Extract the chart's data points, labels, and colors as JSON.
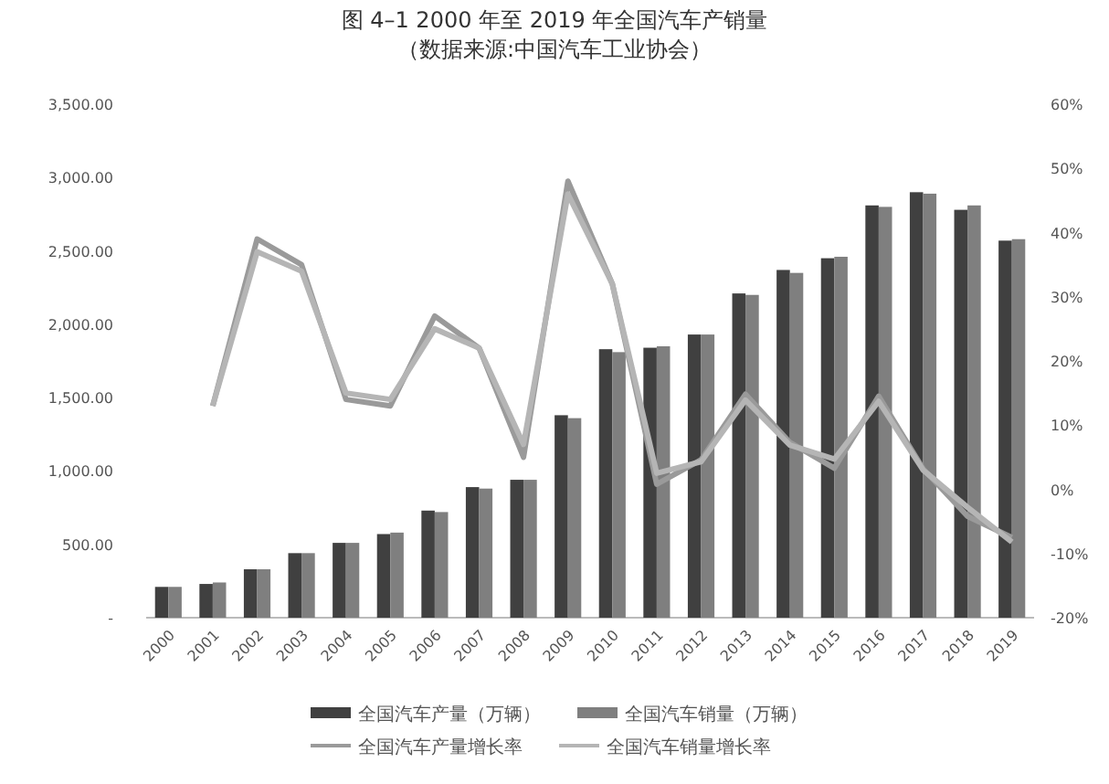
{
  "chart_data": {
    "type": "bar",
    "title": "图 4–1 2000 年至 2019 年全国汽车产销量",
    "subtitle": "（数据来源:中国汽车工业协会）",
    "categories": [
      "2000",
      "2001",
      "2002",
      "2003",
      "2004",
      "2005",
      "2006",
      "2007",
      "2008",
      "2009",
      "2010",
      "2011",
      "2012",
      "2013",
      "2014",
      "2015",
      "2016",
      "2017",
      "2018",
      "2019"
    ],
    "series": [
      {
        "name": "全国汽车产量（万辆）",
        "color": "#404040",
        "values": [
          210,
          230,
          330,
          440,
          510,
          570,
          730,
          890,
          940,
          1380,
          1830,
          1840,
          1930,
          2210,
          2370,
          2450,
          2810,
          2900,
          2780,
          2570
        ]
      },
      {
        "name": "全国汽车销量（万辆）",
        "color": "#7f7f7f",
        "values": [
          210,
          240,
          330,
          440,
          510,
          580,
          720,
          880,
          940,
          1360,
          1810,
          1850,
          1930,
          2200,
          2350,
          2460,
          2800,
          2890,
          2810,
          2580
        ]
      },
      {
        "name": "全国汽车产量增长率",
        "type": "line",
        "axis": "y2",
        "color": "#9a9a9a",
        "values": [
          null,
          13,
          39,
          35,
          14,
          13,
          27,
          22,
          5,
          48,
          32,
          0.8,
          4.6,
          14.8,
          7.3,
          3.3,
          14.5,
          3.2,
          -4.2,
          -7.5
        ]
      },
      {
        "name": "全国汽车销量增长率",
        "type": "line",
        "axis": "y2",
        "color": "#b5b5b5",
        "values": [
          null,
          13,
          37,
          34,
          15,
          14,
          25,
          22,
          7,
          46,
          32,
          2.5,
          4.3,
          13.9,
          6.9,
          4.7,
          13.7,
          3.0,
          -2.8,
          -8.2
        ]
      }
    ],
    "ylim": [
      0,
      3500
    ],
    "yticks": [
      {
        "value": 0,
        "label": "-"
      },
      {
        "value": 500,
        "label": "500.00"
      },
      {
        "value": 1000,
        "label": "1,000.00"
      },
      {
        "value": 1500,
        "label": "1,500.00"
      },
      {
        "value": 2000,
        "label": "2,000.00"
      },
      {
        "value": 2500,
        "label": "2,500.00"
      },
      {
        "value": 3000,
        "label": "3,000.00"
      },
      {
        "value": 3500,
        "label": "3,500.00"
      }
    ],
    "y2lim": [
      -20,
      60
    ],
    "y2ticks": [
      {
        "value": -20,
        "label": "-20%"
      },
      {
        "value": -10,
        "label": "-10%"
      },
      {
        "value": 0,
        "label": "0%"
      },
      {
        "value": 10,
        "label": "10%"
      },
      {
        "value": 20,
        "label": "20%"
      },
      {
        "value": 30,
        "label": "30%"
      },
      {
        "value": 40,
        "label": "40%"
      },
      {
        "value": 50,
        "label": "50%"
      },
      {
        "value": 60,
        "label": "60%"
      }
    ],
    "legend": "bottom",
    "grid": false
  }
}
